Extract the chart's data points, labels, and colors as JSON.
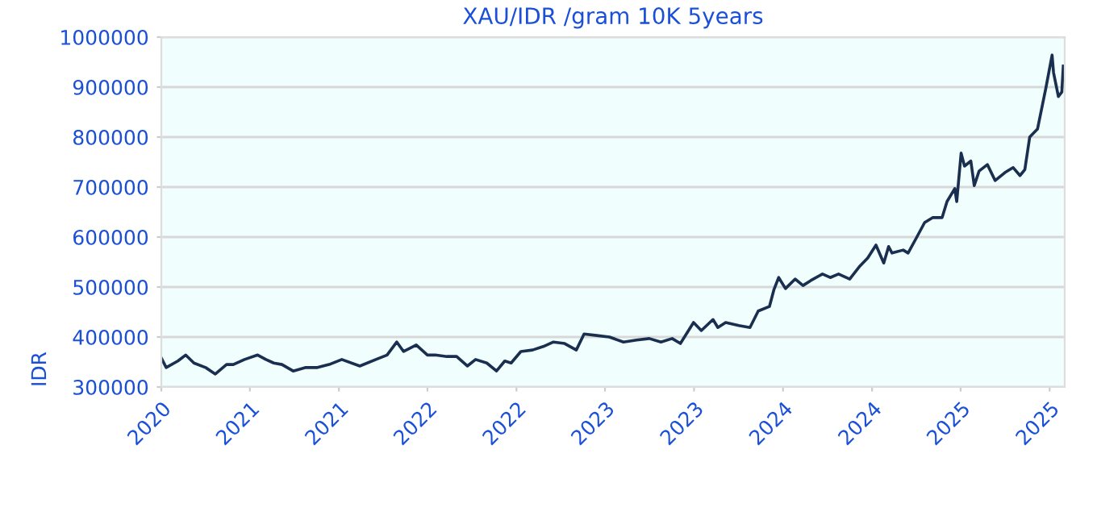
{
  "chart_data": {
    "type": "line",
    "title": "XAU/IDR /gram 10K 5years",
    "ylabel": "IDR",
    "x": [
      "2020-10-15",
      "2020-10-25",
      "2020-11-18",
      "2020-12-04",
      "2020-12-21",
      "2021-01-14",
      "2021-02-03",
      "2021-02-26",
      "2021-03-12",
      "2021-04-04",
      "2021-05-01",
      "2021-05-18",
      "2021-06-03",
      "2021-06-20",
      "2021-07-13",
      "2021-08-08",
      "2021-09-01",
      "2021-09-25",
      "2021-10-21",
      "2021-11-27",
      "2021-12-30",
      "2022-01-22",
      "2022-02-11",
      "2022-02-25",
      "2022-03-23",
      "2022-04-15",
      "2022-05-01",
      "2022-05-25",
      "2022-06-14",
      "2022-07-06",
      "2022-07-23",
      "2022-08-15",
      "2022-09-04",
      "2022-09-21",
      "2022-10-04",
      "2022-10-24",
      "2022-11-17",
      "2022-12-09",
      "2022-12-30",
      "2023-01-22",
      "2023-02-15",
      "2023-03-03",
      "2023-03-29",
      "2023-04-24",
      "2023-05-23",
      "2023-06-19",
      "2023-07-15",
      "2023-08-08",
      "2023-08-31",
      "2023-09-17",
      "2023-10-14",
      "2023-10-30",
      "2023-11-23",
      "2023-12-03",
      "2023-12-19",
      "2024-01-15",
      "2024-02-07",
      "2024-02-24",
      "2024-03-18",
      "2024-03-27",
      "2024-04-06",
      "2024-04-20",
      "2024-05-10",
      "2024-05-26",
      "2024-06-11",
      "2024-07-05",
      "2024-07-21",
      "2024-08-07",
      "2024-08-30",
      "2024-09-20",
      "2024-10-06",
      "2024-10-23",
      "2024-11-08",
      "2024-11-18",
      "2024-11-25",
      "2024-12-18",
      "2024-12-28",
      "2025-01-15",
      "2025-01-31",
      "2025-02-17",
      "2025-03-08",
      "2025-03-18",
      "2025-04-03",
      "2025-04-07",
      "2025-04-16",
      "2025-04-23",
      "2025-05-06",
      "2025-05-13",
      "2025-05-23",
      "2025-06-09",
      "2025-06-25",
      "2025-07-15",
      "2025-08-01",
      "2025-08-15",
      "2025-08-25",
      "2025-09-04",
      "2025-09-20",
      "2025-10-07",
      "2025-10-20",
      "2025-10-23",
      "2025-11-02",
      "2025-11-09",
      "2025-11-12"
    ],
    "series": [
      {
        "color": "#1a2e4f",
        "values": [
          358000,
          339000,
          352000,
          364000,
          348000,
          339000,
          326000,
          345000,
          345000,
          355000,
          364000,
          355000,
          348000,
          345000,
          332000,
          339000,
          339000,
          345000,
          355000,
          342000,
          355000,
          364000,
          390000,
          371000,
          384000,
          364000,
          364000,
          361000,
          361000,
          342000,
          355000,
          348000,
          332000,
          352000,
          348000,
          371000,
          374000,
          381000,
          390000,
          387000,
          374000,
          406000,
          403000,
          400000,
          390000,
          394000,
          397000,
          390000,
          397000,
          387000,
          429000,
          413000,
          435000,
          419000,
          429000,
          423000,
          419000,
          452000,
          461000,
          494000,
          519000,
          497000,
          516000,
          503000,
          513000,
          526000,
          519000,
          526000,
          516000,
          542000,
          558000,
          584000,
          548000,
          581000,
          568000,
          574000,
          568000,
          600000,
          629000,
          639000,
          639000,
          671000,
          697000,
          671000,
          768000,
          742000,
          752000,
          703000,
          732000,
          745000,
          713000,
          729000,
          739000,
          723000,
          735000,
          800000,
          816000,
          897000,
          964000,
          929000,
          881000,
          890000,
          942000
        ]
      }
    ],
    "xlim": [
      "2020-10-15",
      "2025-11-15"
    ],
    "xticks": [
      {
        "value": "2020-10-15",
        "label": "2020"
      },
      {
        "value": "2021-04-15",
        "label": "2021"
      },
      {
        "value": "2021-10-15",
        "label": "2021"
      },
      {
        "value": "2022-04-15",
        "label": "2022"
      },
      {
        "value": "2022-10-15",
        "label": "2022"
      },
      {
        "value": "2023-04-15",
        "label": "2023"
      },
      {
        "value": "2023-10-15",
        "label": "2023"
      },
      {
        "value": "2024-04-15",
        "label": "2024"
      },
      {
        "value": "2024-10-15",
        "label": "2024"
      },
      {
        "value": "2025-04-15",
        "label": "2025"
      },
      {
        "value": "2025-10-15",
        "label": "2025"
      }
    ],
    "ylim": [
      300000,
      1000000
    ],
    "yticks": [
      300000,
      400000,
      500000,
      600000,
      700000,
      800000,
      900000,
      1000000
    ],
    "grid": "y"
  }
}
